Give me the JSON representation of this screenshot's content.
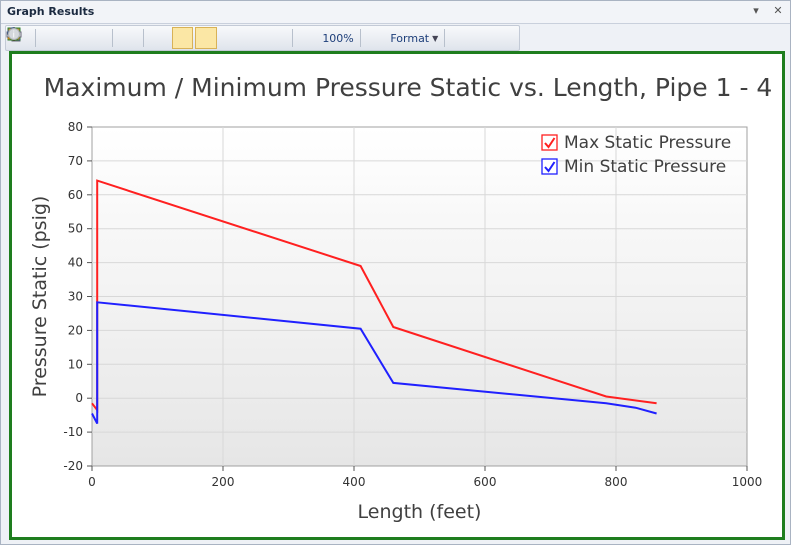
{
  "window": {
    "title": "Graph Results",
    "controls": [
      "▾",
      "✕"
    ]
  },
  "toolbar": {
    "zoom_label": "100%",
    "format_label": "Format"
  },
  "chart_data": {
    "type": "line",
    "title": "Maximum / Minimum Pressure Static vs. Length, Pipe 1 - 4",
    "xlabel": "Length (feet)",
    "ylabel": "Pressure Static (psig)",
    "xlim": [
      0,
      1000
    ],
    "ylim": [
      -20,
      80
    ],
    "xticks": [
      "0",
      "200",
      "400",
      "600",
      "800",
      "1000"
    ],
    "yticks": [
      "80",
      "70",
      "60",
      "50",
      "40",
      "30",
      "20",
      "10",
      "0",
      "-10",
      "-20"
    ],
    "grid": true,
    "legend_position": "top-right",
    "series": [
      {
        "name": "Max Static Pressure",
        "color": "#ff2020",
        "points": [
          [
            0,
            -1.5
          ],
          [
            8,
            -3.5
          ],
          [
            8,
            64.2
          ],
          [
            410,
            39
          ],
          [
            460,
            21
          ],
          [
            785,
            0.5
          ],
          [
            862,
            -1.5
          ]
        ]
      },
      {
        "name": "Min Static Pressure",
        "color": "#2020ff",
        "points": [
          [
            0,
            -4.5
          ],
          [
            8,
            -7.5
          ],
          [
            8,
            28.3
          ],
          [
            410,
            20.5
          ],
          [
            460,
            4.5
          ],
          [
            785,
            -1.5
          ],
          [
            830,
            -2.8
          ],
          [
            862,
            -4.5
          ]
        ]
      }
    ]
  }
}
